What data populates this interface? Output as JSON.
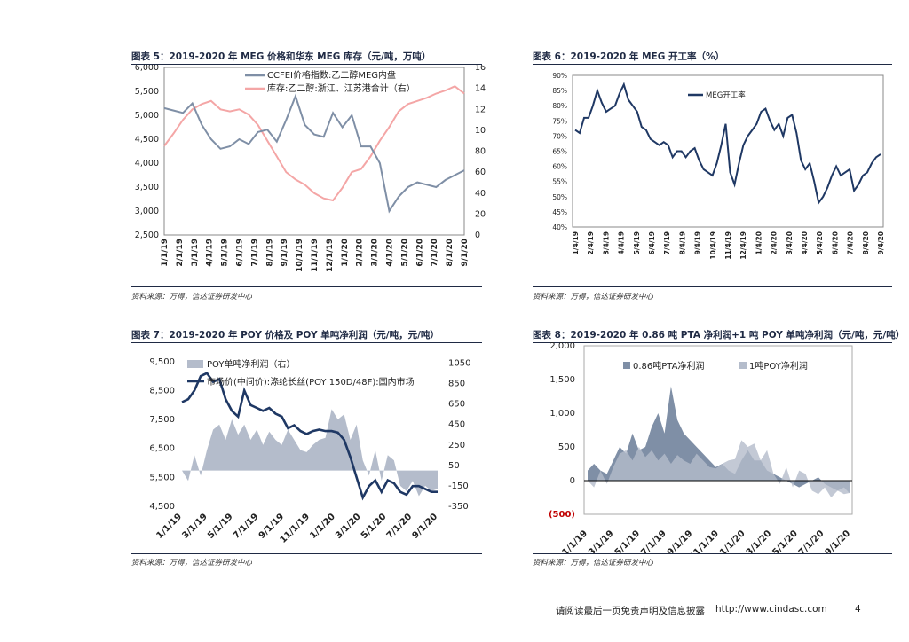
{
  "captions": {
    "fig5": "图表 5：2019-2020 年 MEG 价格和华东 MEG 库存（元/吨，万吨）",
    "fig6": "图表 6：2019-2020 年 MEG 开工率（%）",
    "fig7": "图表 7：2019-2020 年 POY 价格及 POY 单吨净利润（元/吨，元/吨）",
    "fig8": "图表 8：2019-2020 年 0.86 吨 PTA 净利润+1 吨 POY 单吨净利润（元/吨，元/吨）"
  },
  "sources": {
    "fig5": "资料来源：万得，信达证券研发中心",
    "fig6": "资料来源：万得，信达证券研发中心",
    "fig7": "资料来源：万得，信达证券研发中心",
    "fig8": "资料来源：万得，信达证券研发中心"
  },
  "footer": {
    "disclaimer": "请阅读最后一页免责声明及信息披露",
    "url": "http://www.cindasc.com",
    "page": "4"
  },
  "colors": {
    "navy": "#1f3864",
    "pink": "#f4a6a6",
    "steel": "#7f8fa6",
    "light": "#b4bccb"
  },
  "chart_data": [
    {
      "id": "fig5",
      "type": "line",
      "x_labels": [
        "1/1/19",
        "2/1/19",
        "3/1/19",
        "4/1/19",
        "5/1/19",
        "6/1/19",
        "7/1/19",
        "8/1/19",
        "9/1/19",
        "10/1/19",
        "11/1/19",
        "12/1/19",
        "1/1/20",
        "2/1/20",
        "3/1/20",
        "4/1/20",
        "5/1/20",
        "6/1/20",
        "7/1/20",
        "8/1/20",
        "9/1/20"
      ],
      "y_left_ticks": [
        "2,500",
        "3,000",
        "3,500",
        "4,000",
        "4,500",
        "5,000",
        "5,500",
        "6,000"
      ],
      "y_left_range": [
        2500,
        6000
      ],
      "y_right_ticks": [
        "0",
        "20",
        "40",
        "60",
        "80",
        "100",
        "120",
        "140",
        "160"
      ],
      "y_right_range": [
        0,
        160
      ],
      "series": [
        {
          "name": "CCFEI价格指数:乙二醇MEG内盘",
          "axis": "left",
          "color": "#7f8fa6",
          "values": [
            5150,
            5100,
            5050,
            5250,
            4800,
            4500,
            4300,
            4350,
            4500,
            4400,
            4650,
            4700,
            4450,
            4900,
            5400,
            4800,
            4600,
            4550,
            5050,
            4750,
            5000,
            4350,
            4350,
            4000,
            3000,
            3300,
            3500,
            3600,
            3550,
            3500,
            3650,
            3750,
            3850
          ]
        },
        {
          "name": "库存:乙二醇:浙江、江苏港合计（右）",
          "axis": "right",
          "color": "#f4a6a6",
          "values": [
            85,
            97,
            110,
            120,
            125,
            128,
            120,
            118,
            120,
            115,
            105,
            90,
            75,
            60,
            53,
            48,
            40,
            35,
            33,
            45,
            60,
            63,
            75,
            90,
            103,
            118,
            125,
            128,
            131,
            135,
            138,
            142,
            135
          ]
        }
      ]
    },
    {
      "id": "fig6",
      "type": "line",
      "x_labels": [
        "1/4/19",
        "2/4/19",
        "3/4/19",
        "4/4/19",
        "5/4/19",
        "6/4/19",
        "7/4/19",
        "8/4/19",
        "9/4/19",
        "10/4/19",
        "11/4/19",
        "12/4/19",
        "1/4/20",
        "2/4/20",
        "3/4/20",
        "4/4/20",
        "5/4/20",
        "6/4/20",
        "7/4/20",
        "8/4/20",
        "9/4/20"
      ],
      "y_ticks": [
        "40%",
        "45%",
        "50%",
        "55%",
        "60%",
        "65%",
        "70%",
        "75%",
        "80%",
        "85%",
        "90%"
      ],
      "y_range": [
        40,
        90
      ],
      "series": [
        {
          "name": "MEG开工率",
          "color": "#1f3864",
          "values": [
            72,
            71,
            76,
            76,
            80,
            85,
            81,
            78,
            79,
            80,
            84,
            87,
            82,
            80,
            78,
            73,
            72,
            69,
            68,
            67,
            68,
            67,
            63,
            65,
            65,
            63,
            65,
            66,
            62,
            59,
            58,
            57,
            61,
            67,
            74,
            58,
            54,
            61,
            67,
            70,
            72,
            74,
            78,
            79,
            75,
            72,
            74,
            70,
            76,
            77,
            71,
            62,
            59,
            61,
            55,
            48,
            50,
            53,
            57,
            60,
            57,
            58,
            59,
            52,
            54,
            57,
            58,
            61,
            63,
            64
          ]
        }
      ]
    },
    {
      "id": "fig7",
      "type": "line+area",
      "x_labels": [
        "1/1/19",
        "3/1/19",
        "5/1/19",
        "7/1/19",
        "9/1/19",
        "11/1/19",
        "1/1/20",
        "3/1/20",
        "5/1/20",
        "7/1/20",
        "9/1/20"
      ],
      "y_left_ticks": [
        "4,500",
        "5,500",
        "6,500",
        "7,500",
        "8,500",
        "9,500"
      ],
      "y_left_range": [
        4500,
        9800
      ],
      "y_right_ticks": [
        "-350",
        "-150",
        "50",
        "250",
        "450",
        "650",
        "850",
        "1050"
      ],
      "y_right_range": [
        -350,
        1150
      ],
      "series": [
        {
          "name": "POY单吨净利润（右）",
          "axis": "right",
          "type": "area",
          "color": "#b4bccb",
          "values": [
            0,
            -100,
            150,
            -50,
            200,
            400,
            450,
            300,
            500,
            350,
            450,
            300,
            400,
            250,
            380,
            300,
            250,
            400,
            300,
            200,
            180,
            250,
            300,
            320,
            600,
            500,
            550,
            300,
            450,
            100,
            -50,
            200,
            -100,
            150,
            100,
            -150,
            -200,
            -100,
            -250,
            -150,
            -200,
            -180
          ]
        },
        {
          "name": "市场价(中间价):涤纶长丝(POY 150D/48F):国内市场",
          "axis": "left",
          "type": "line",
          "color": "#1f3864",
          "values": [
            8100,
            8200,
            8500,
            9000,
            9100,
            8800,
            8900,
            8200,
            7800,
            7600,
            8500,
            8000,
            7900,
            7800,
            7900,
            7700,
            7600,
            7200,
            7300,
            7100,
            7000,
            7100,
            7150,
            7100,
            7100,
            7050,
            6800,
            6200,
            5500,
            4800,
            5200,
            5400,
            5000,
            5400,
            5300,
            5000,
            4900,
            5200,
            5200,
            5100,
            5000,
            5000
          ]
        }
      ]
    },
    {
      "id": "fig8",
      "type": "area",
      "x_labels": [
        "1/1/19",
        "3/1/19",
        "5/1/19",
        "7/1/19",
        "9/1/19",
        "11/1/19",
        "1/1/20",
        "3/1/20",
        "5/1/20",
        "7/1/20",
        "9/1/20"
      ],
      "y_ticks": [
        "(500)",
        "0",
        "500",
        "1,000",
        "1,500",
        "2,000"
      ],
      "y_range": [
        -500,
        2000
      ],
      "series": [
        {
          "name": "0.86吨PTA净利润",
          "color": "#7f8fa6",
          "values": [
            150,
            250,
            150,
            100,
            300,
            500,
            400,
            700,
            450,
            500,
            800,
            1000,
            700,
            1400,
            900,
            700,
            600,
            500,
            400,
            300,
            200,
            250,
            150,
            100,
            300,
            450,
            300,
            300,
            150,
            100,
            50,
            0,
            -50,
            -100,
            -50,
            0,
            50,
            -50,
            -100,
            -150,
            -100,
            -200
          ]
        },
        {
          "name": "1吨POY净利润",
          "color": "#b4bccb",
          "values": [
            0,
            -100,
            150,
            -50,
            200,
            400,
            450,
            300,
            500,
            350,
            450,
            300,
            400,
            250,
            380,
            300,
            250,
            400,
            300,
            200,
            180,
            250,
            300,
            320,
            600,
            500,
            550,
            300,
            450,
            100,
            -50,
            200,
            -100,
            150,
            100,
            -150,
            -200,
            -100,
            -250,
            -150,
            -200,
            -180
          ]
        }
      ]
    }
  ]
}
